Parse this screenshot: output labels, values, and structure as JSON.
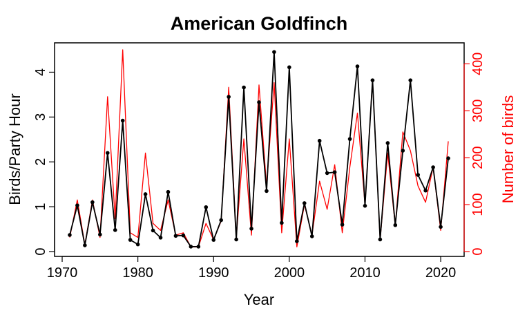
{
  "chart_data": {
    "type": "line",
    "title": "American Goldfinch",
    "xlabel": "Year",
    "ylabel": "Birds/Party Hour",
    "y2label": "Number of birds",
    "xlim": [
      1970,
      2022
    ],
    "ylim": [
      0,
      4.5
    ],
    "y2lim": [
      0,
      430
    ],
    "x_ticks": [
      1970,
      1980,
      1990,
      2000,
      2010,
      2020
    ],
    "y_ticks": [
      0,
      1,
      2,
      3,
      4
    ],
    "y2_ticks": [
      0,
      100,
      200,
      300,
      400
    ],
    "grid": false,
    "legend": "none",
    "colors": {
      "left_axis": "#000000",
      "right_axis": "#ff0000"
    },
    "x": [
      1971,
      1972,
      1973,
      1974,
      1975,
      1976,
      1977,
      1978,
      1979,
      1980,
      1981,
      1982,
      1983,
      1984,
      1985,
      1986,
      1987,
      1988,
      1989,
      1990,
      1991,
      1992,
      1993,
      1994,
      1995,
      1996,
      1997,
      1998,
      1999,
      2000,
      2001,
      2002,
      2003,
      2004,
      2005,
      2006,
      2007,
      2008,
      2009,
      2010,
      2011,
      2012,
      2013,
      2014,
      2015,
      2016,
      2017,
      2018,
      2019,
      2020,
      2021
    ],
    "series": [
      {
        "axis": "left",
        "color": "#000000",
        "markers": true,
        "values": [
          0.37,
          1.03,
          0.14,
          1.1,
          0.38,
          2.2,
          0.48,
          2.92,
          0.26,
          0.16,
          1.28,
          0.47,
          0.31,
          1.33,
          0.35,
          0.36,
          0.11,
          0.11,
          0.99,
          0.26,
          0.7,
          3.45,
          0.27,
          3.66,
          0.51,
          3.33,
          1.35,
          4.45,
          0.64,
          4.11,
          0.23,
          1.08,
          0.34,
          2.47,
          1.75,
          1.77,
          0.6,
          2.51,
          4.13,
          1.02,
          3.82,
          0.27,
          2.42,
          0.59,
          2.25,
          3.82,
          1.71,
          1.36,
          1.88,
          0.55,
          2.08
        ]
      },
      {
        "axis": "right",
        "color": "#ff0000",
        "markers": false,
        "values": [
          30,
          110,
          15,
          110,
          30,
          330,
          70,
          430,
          40,
          30,
          210,
          60,
          45,
          110,
          35,
          40,
          10,
          10,
          60,
          25,
          65,
          350,
          30,
          240,
          35,
          355,
          140,
          360,
          40,
          240,
          10,
          100,
          35,
          150,
          90,
          185,
          40,
          180,
          295,
          100,
          365,
          25,
          210,
          55,
          255,
          215,
          140,
          105,
          180,
          45,
          235
        ]
      }
    ]
  }
}
